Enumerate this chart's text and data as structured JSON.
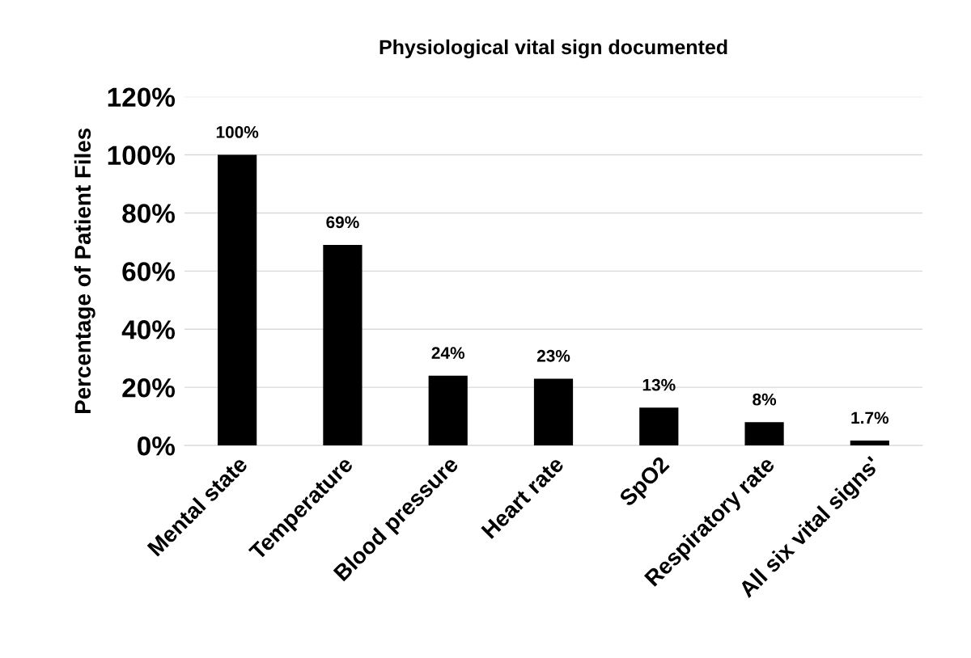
{
  "chart_data": {
    "type": "bar",
    "title": "Physiological vital sign documented",
    "ylabel": "Percentage of Patient Files",
    "categories": [
      "Mental state",
      "Temperature",
      "Blood pressure",
      "Heart rate",
      "SpO2",
      "Respiratory rate",
      "All six vital signs'"
    ],
    "values": [
      100,
      69,
      24,
      23,
      13,
      8,
      1.7
    ],
    "value_labels": [
      "100%",
      "69%",
      "24%",
      "23%",
      "13%",
      "8%",
      "1.7%"
    ],
    "color": "#000000",
    "ylim": [
      0,
      120
    ],
    "yticks": [
      {
        "value": 0,
        "label": "0%"
      },
      {
        "value": 20,
        "label": "20%"
      },
      {
        "value": 40,
        "label": "40%"
      },
      {
        "value": 60,
        "label": "60%"
      },
      {
        "value": 80,
        "label": "80%"
      },
      {
        "value": 100,
        "label": "100%"
      },
      {
        "value": 120,
        "label": "120%"
      }
    ],
    "grid": "y"
  }
}
